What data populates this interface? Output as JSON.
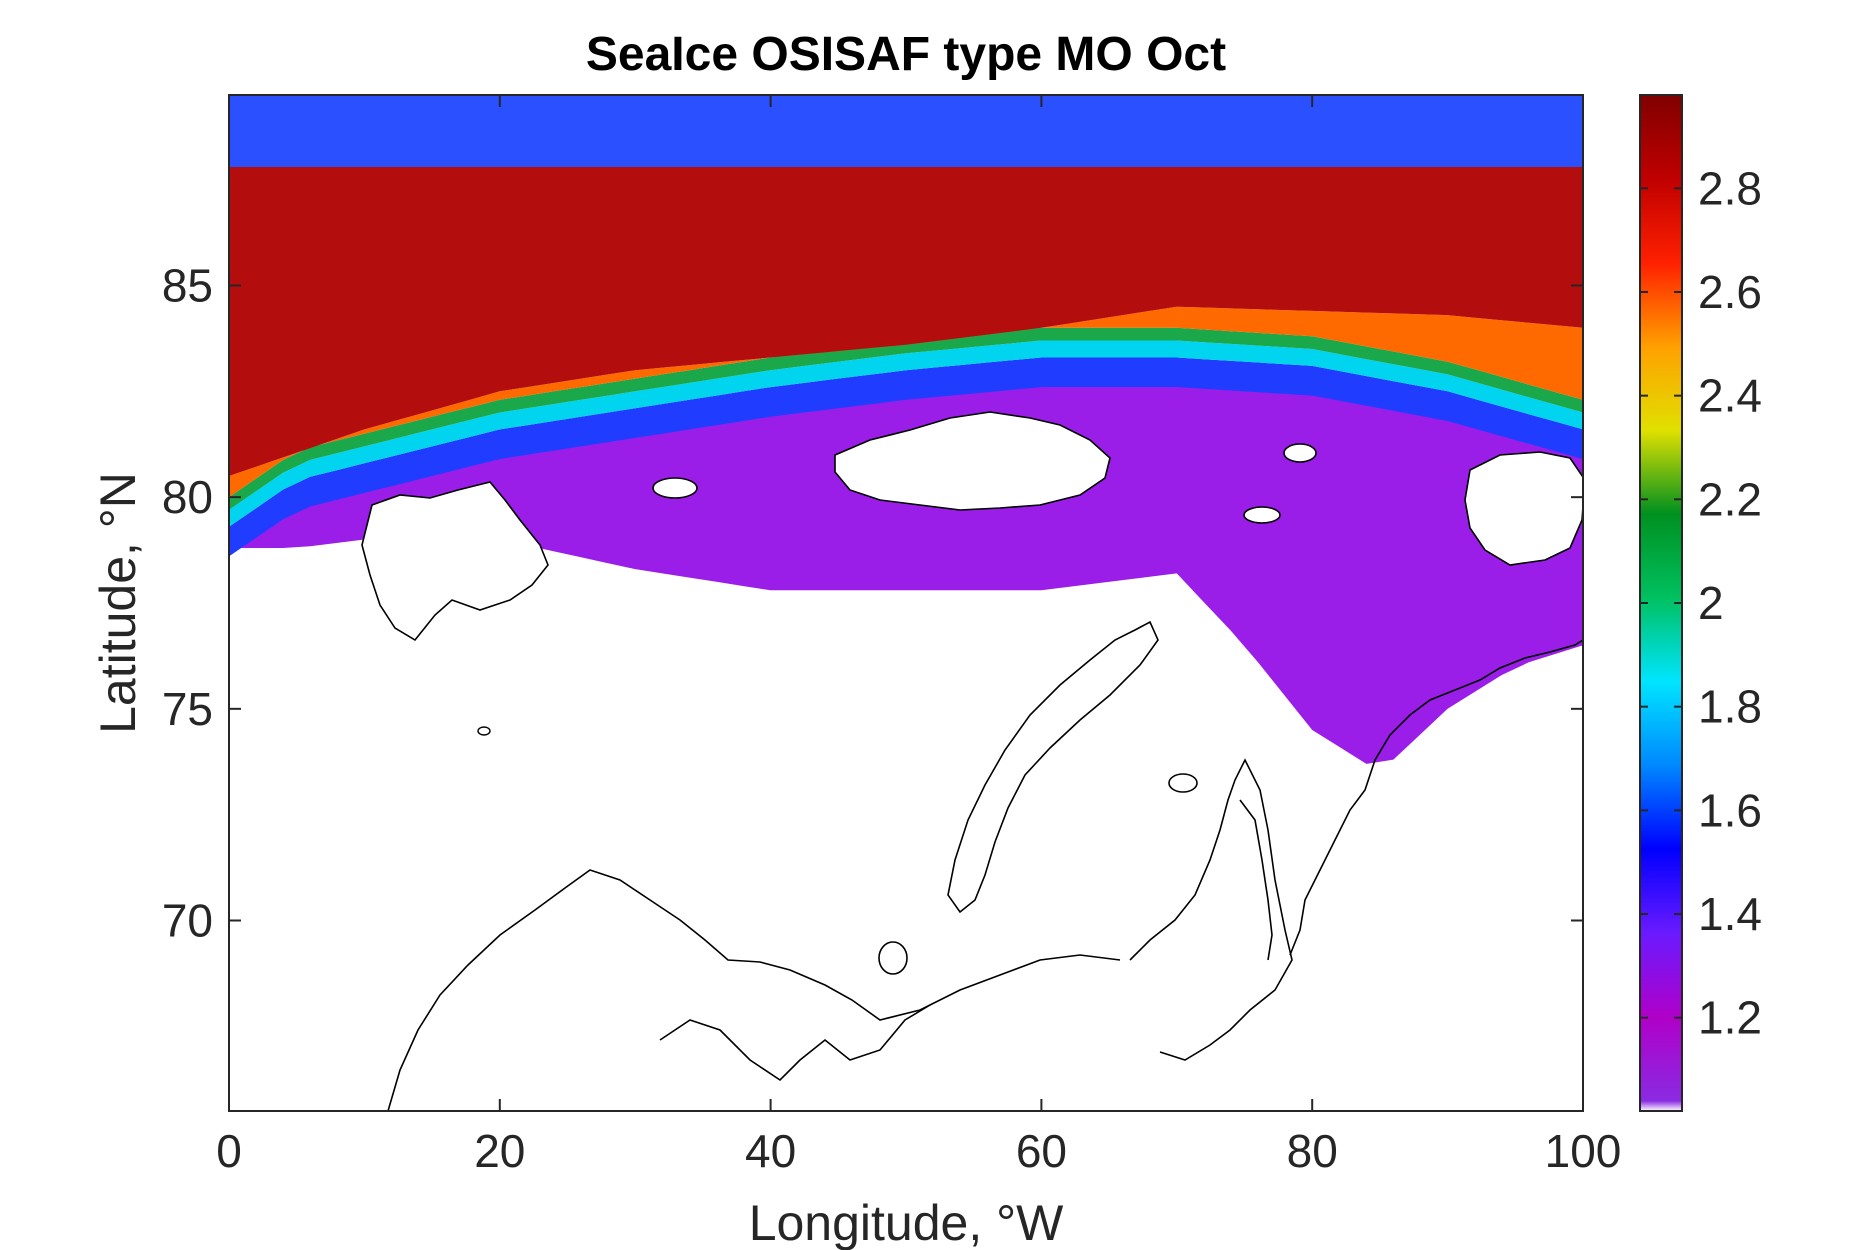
{
  "chart_data": {
    "type": "heatmap",
    "title": "SeaIce OSISAF type MO Oct",
    "xlabel": "Longitude, °W",
    "ylabel": "Latitude, °N",
    "xlim": [
      0,
      100
    ],
    "ylim": [
      65.5,
      89.5
    ],
    "xticks": [
      0,
      20,
      40,
      60,
      80,
      100
    ],
    "yticks": [
      70,
      75,
      80,
      85
    ],
    "colorbar": {
      "range": [
        1.02,
        2.98
      ],
      "ticks": [
        1.2,
        1.4,
        1.6,
        1.8,
        2.0,
        2.2,
        2.4,
        2.6,
        2.8
      ],
      "tick_labels": [
        "1.2",
        "1.4",
        "1.6",
        "1.8",
        "2",
        "2.2",
        "2.4",
        "2.6",
        "2.8"
      ],
      "colormap": [
        "#ffffff",
        "#8a2be2",
        "#b000c8",
        "#6a1aff",
        "#0000ff",
        "#0088ff",
        "#00e5ff",
        "#00c060",
        "#009020",
        "#e0e000",
        "#ffa000",
        "#ff2000",
        "#c00000",
        "#800000"
      ]
    },
    "ice_edge_latitude": [
      [
        0,
        79.0
      ],
      [
        5,
        80.1
      ],
      [
        10,
        80.5
      ],
      [
        20,
        81.3
      ],
      [
        30,
        81.8
      ],
      [
        40,
        82.3
      ],
      [
        50,
        82.7
      ],
      [
        60,
        83.0
      ],
      [
        70,
        83.0
      ],
      [
        80,
        82.8
      ],
      [
        90,
        82.2
      ],
      [
        100,
        81.3
      ]
    ],
    "thick_ice_boundary_latitude": [
      [
        0,
        80.5
      ],
      [
        10,
        81.6
      ],
      [
        20,
        82.5
      ],
      [
        30,
        83.0
      ],
      [
        40,
        83.3
      ],
      [
        50,
        83.6
      ],
      [
        60,
        84.0
      ],
      [
        70,
        84.5
      ],
      [
        80,
        84.4
      ],
      [
        90,
        84.3
      ],
      [
        100,
        84.0
      ]
    ],
    "ice_extent_southern_limit_latitude": [
      [
        0,
        78.8
      ],
      [
        5,
        78.8
      ],
      [
        10,
        79.0
      ],
      [
        20,
        79.0
      ],
      [
        30,
        78.3
      ],
      [
        40,
        77.8
      ],
      [
        50,
        77.8
      ],
      [
        60,
        77.8
      ],
      [
        70,
        78.2
      ],
      [
        75,
        76.5
      ],
      [
        80,
        74.5
      ],
      [
        85,
        73.5
      ],
      [
        90,
        75.0
      ],
      [
        95,
        76.0
      ],
      [
        100,
        76.5
      ]
    ]
  }
}
